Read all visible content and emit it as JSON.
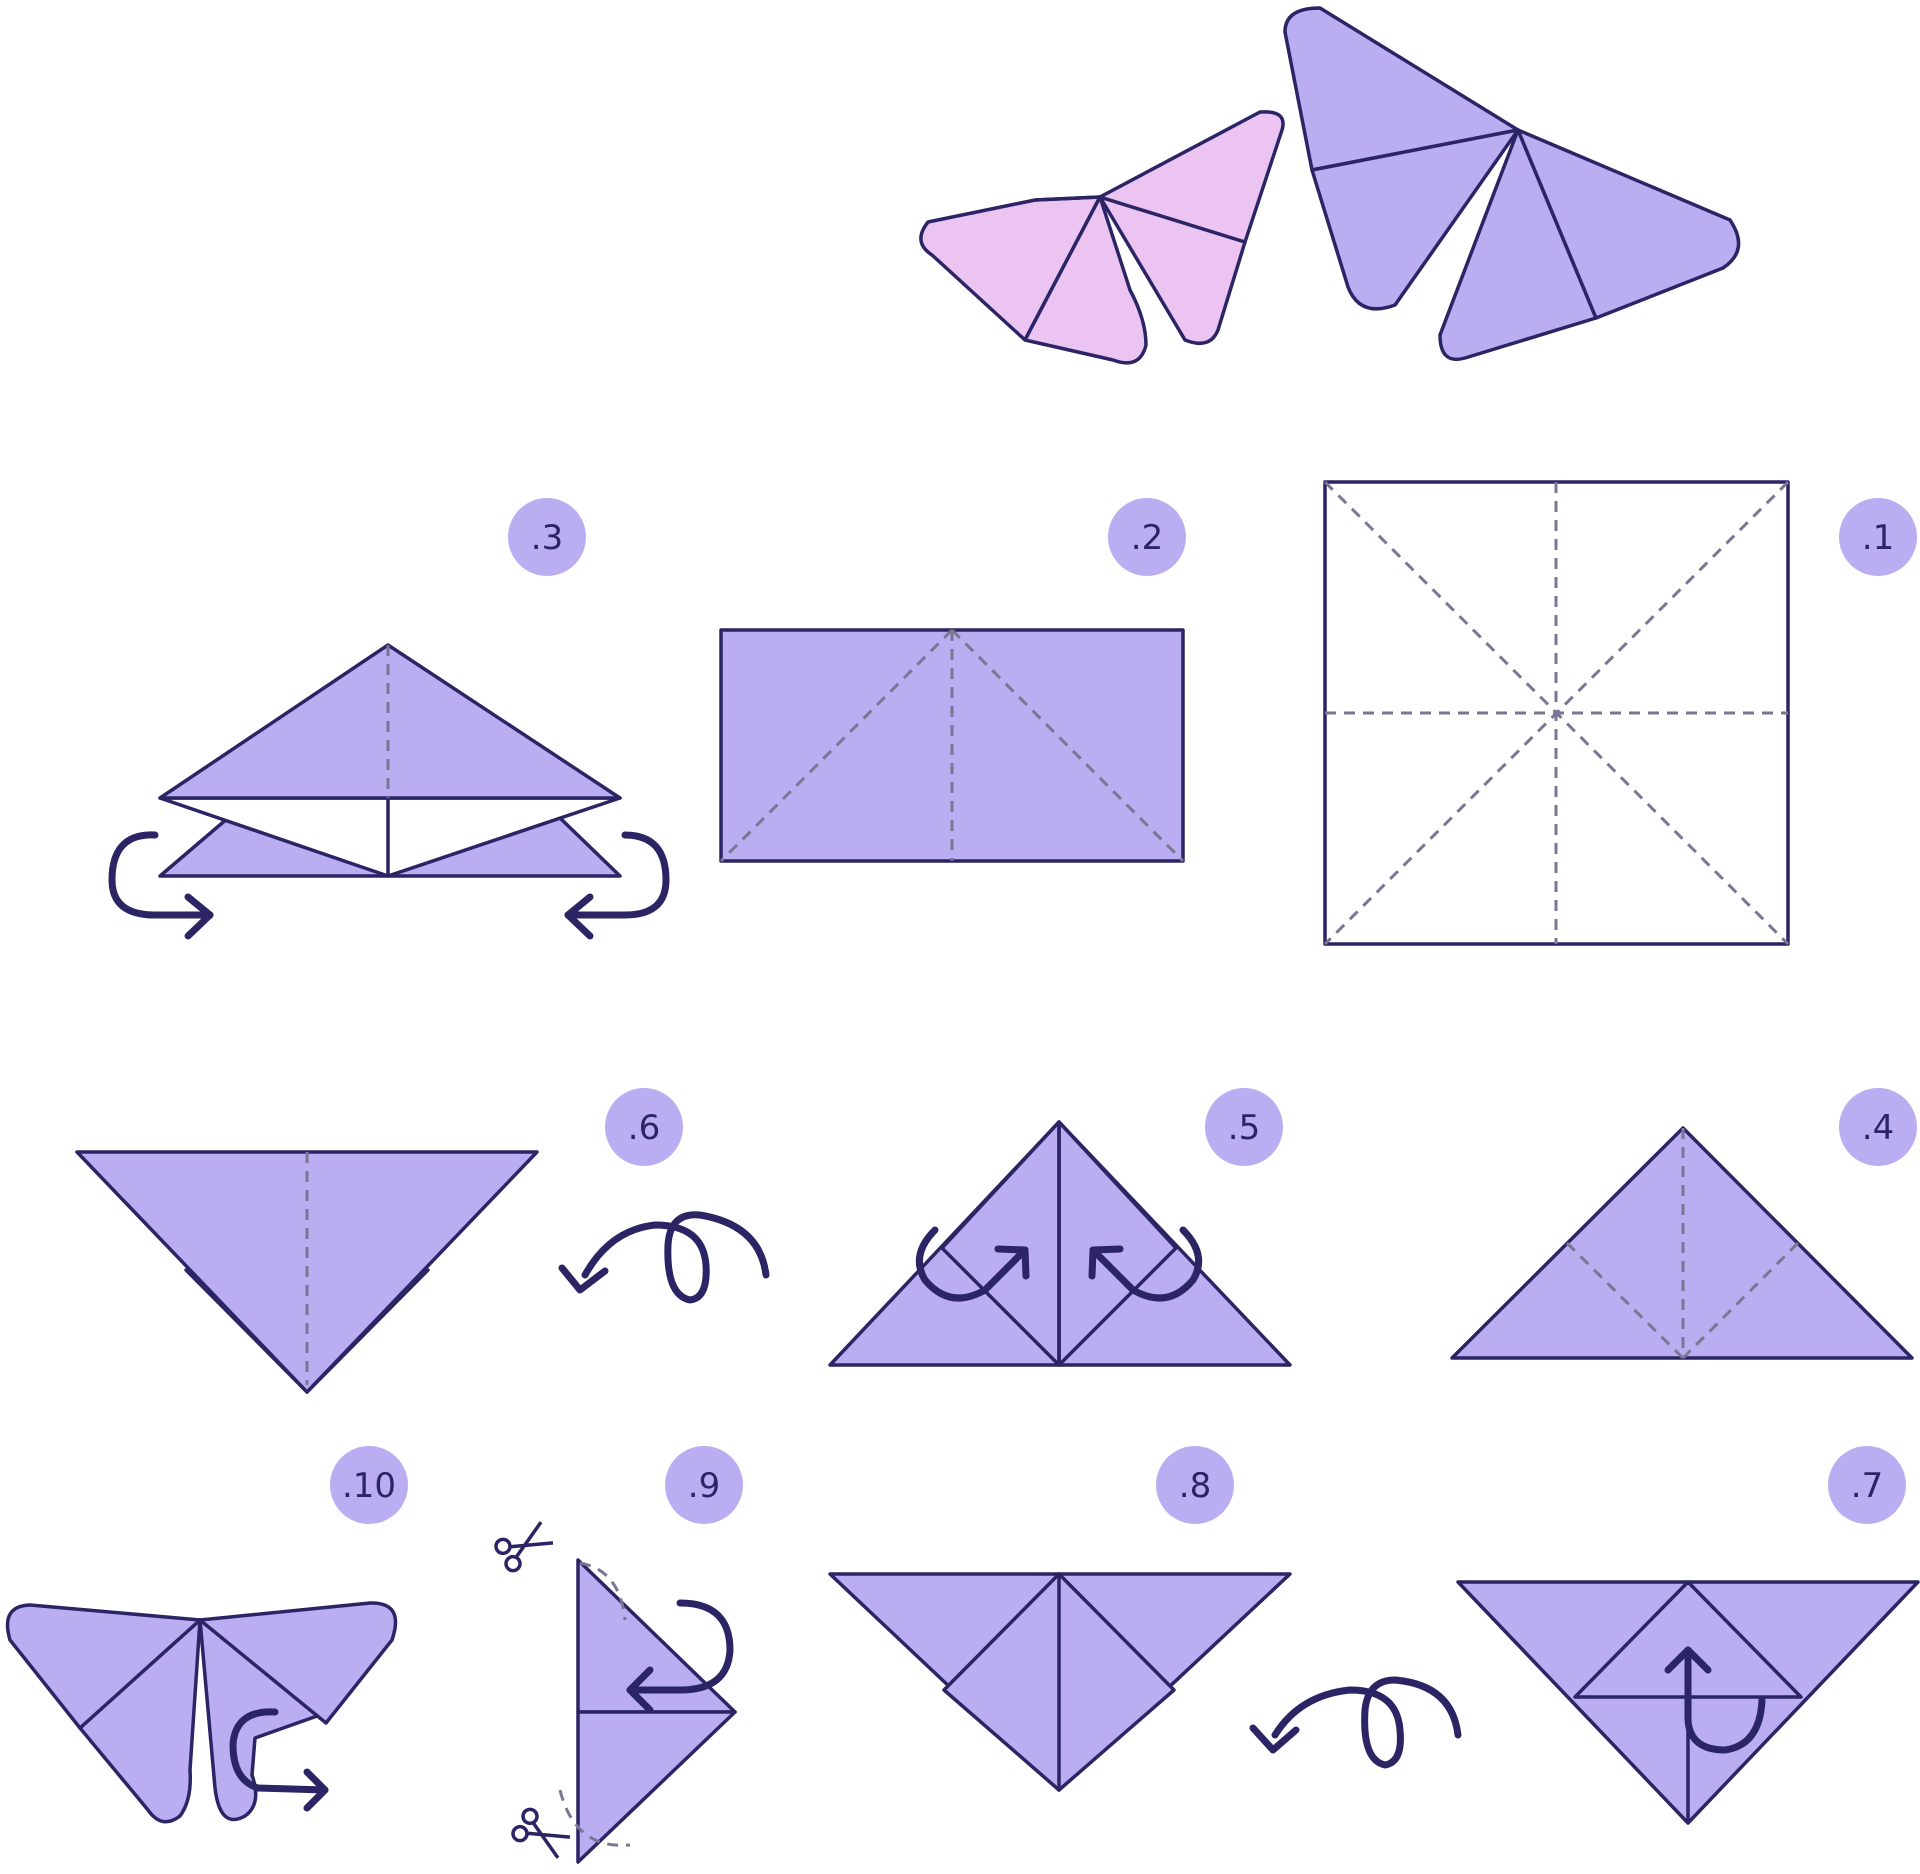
{
  "colors": {
    "paper": "#BBADF2",
    "paper_top": "#BBADF2",
    "pink": "#EBC4F2",
    "outline": "#2B2566",
    "crease": "#7A7694",
    "badge": "#BBADF2",
    "badge_text": "#2B2566",
    "background": "#FFFFFF"
  },
  "final": {
    "name": "finished-butterfly",
    "wings": [
      "pink",
      "purple"
    ]
  },
  "steps": [
    {
      "id": "step-1",
      "badge": ".1",
      "action": "fold and unfold creases"
    },
    {
      "id": "step-2",
      "badge": ".2",
      "action": "fold in half"
    },
    {
      "id": "step-3",
      "badge": ".3",
      "action": "waterbomb base, tuck sides"
    },
    {
      "id": "step-4",
      "badge": ".4",
      "action": "triangle"
    },
    {
      "id": "step-5",
      "badge": ".5",
      "action": "fold corners up"
    },
    {
      "id": "step-6",
      "badge": ".6",
      "action": "flip over"
    },
    {
      "id": "step-7",
      "badge": ".7",
      "action": "fold tip up"
    },
    {
      "id": "step-8",
      "badge": ".8",
      "action": "flip over"
    },
    {
      "id": "step-9",
      "badge": ".9",
      "action": "cut and fold",
      "icons": [
        "scissors-icon",
        "scissors-icon"
      ]
    },
    {
      "id": "step-10",
      "badge": ".10",
      "action": "shape wings"
    }
  ]
}
